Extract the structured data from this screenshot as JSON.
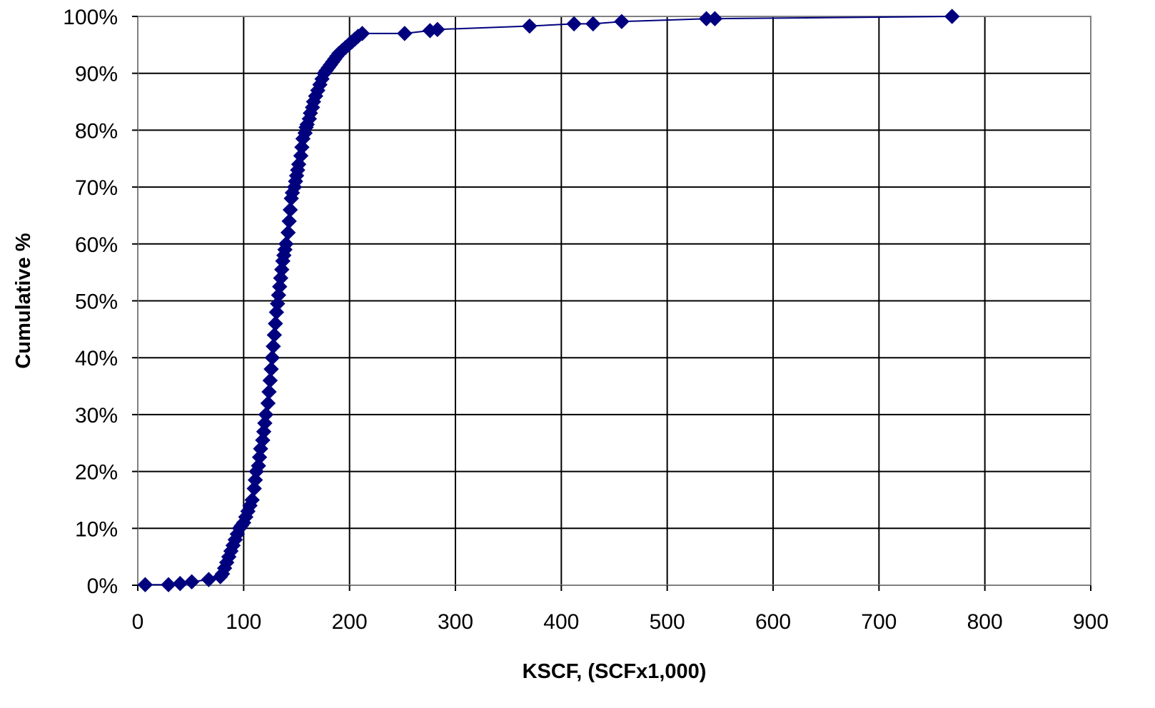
{
  "chart_data": {
    "type": "line",
    "title": "",
    "xlabel": "KSCF, (SCFx1,000)",
    "ylabel": "Cumulative %",
    "xlim": [
      0,
      900
    ],
    "ylim": [
      0,
      100
    ],
    "x_ticks": [
      0,
      100,
      200,
      300,
      400,
      500,
      600,
      700,
      800,
      900
    ],
    "x_tick_labels": [
      "0",
      "100",
      "200",
      "300",
      "400",
      "500",
      "600",
      "700",
      "800",
      "900"
    ],
    "y_ticks": [
      0,
      10,
      20,
      30,
      40,
      50,
      60,
      70,
      80,
      90,
      100
    ],
    "y_tick_labels": [
      "0%",
      "10%",
      "20%",
      "30%",
      "40%",
      "50%",
      "60%",
      "70%",
      "80%",
      "90%",
      "100%"
    ],
    "grid": true,
    "legend": "none",
    "marker": "diamond",
    "series_color": "#00007f",
    "series": [
      {
        "x": [
          7,
          29,
          40,
          51,
          67,
          78,
          80,
          82,
          84,
          86,
          88,
          90,
          92,
          94,
          96,
          98,
          100,
          102,
          104,
          106,
          108,
          110,
          111,
          112,
          114,
          115,
          116,
          118,
          119,
          120,
          121,
          123,
          124,
          125,
          126,
          127,
          128,
          129,
          130,
          131,
          132,
          133,
          134,
          135,
          136,
          137,
          138,
          139,
          140,
          142,
          143,
          144,
          145,
          146,
          148,
          149,
          150,
          151,
          152,
          154,
          155,
          156,
          158,
          159,
          160,
          162,
          163,
          165,
          166,
          168,
          170,
          172,
          174,
          176,
          178,
          180,
          182,
          184,
          186,
          188,
          190,
          193,
          196,
          199,
          202,
          205,
          208,
          212,
          252,
          276,
          283,
          370,
          412,
          430,
          457,
          537,
          545,
          769
        ],
        "y": [
          0.1,
          0.1,
          0.3,
          0.6,
          1.0,
          1.5,
          2.0,
          3.0,
          4.0,
          5.0,
          6.0,
          7.0,
          8.0,
          9.0,
          10.0,
          10.5,
          11.0,
          12.0,
          13.0,
          14.0,
          15.0,
          17.0,
          18.5,
          20.0,
          21.0,
          22.5,
          24.0,
          25.5,
          27.0,
          28.5,
          30.0,
          32.0,
          34.0,
          36.0,
          38.0,
          40.0,
          42.0,
          44.0,
          46.0,
          48.0,
          49.5,
          51.0,
          52.5,
          54.0,
          55.5,
          57.0,
          58.0,
          59.0,
          60.0,
          62.0,
          64.0,
          66.0,
          68.0,
          69.0,
          70.0,
          71.0,
          72.0,
          73.0,
          74.0,
          75.5,
          77.0,
          78.5,
          79.5,
          80.5,
          81.0,
          82.0,
          83.0,
          84.0,
          85.0,
          86.0,
          87.0,
          88.0,
          89.0,
          90.0,
          90.5,
          91.0,
          91.5,
          92.0,
          92.5,
          93.0,
          93.5,
          94.0,
          94.5,
          95.0,
          95.5,
          96.0,
          96.5,
          97.0,
          97.0,
          97.5,
          97.7,
          98.3,
          98.7,
          98.7,
          99.1,
          99.6,
          99.6,
          100.0
        ]
      }
    ]
  }
}
